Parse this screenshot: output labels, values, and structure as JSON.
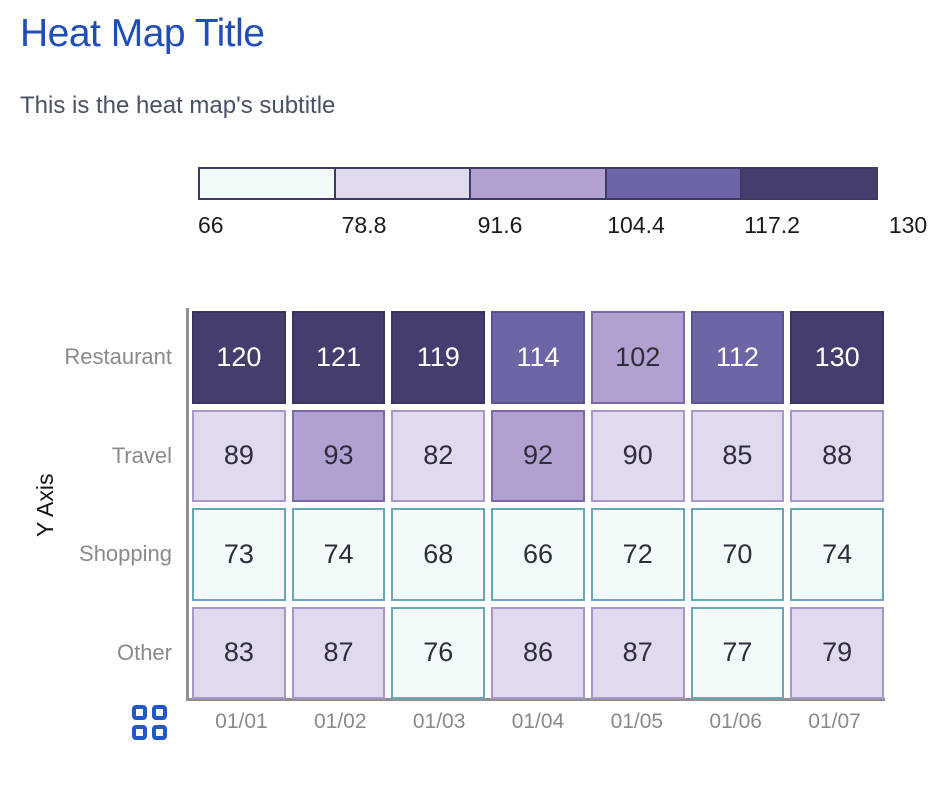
{
  "header": {
    "title": "Heat Map Title",
    "subtitle": "This is the heat map's subtitle"
  },
  "chart_data": {
    "type": "heatmap",
    "title": "Heat Map Title",
    "subtitle": "This is the heat map's subtitle",
    "y_axis_label": "Y Axis",
    "x_labels": [
      "01/01",
      "01/02",
      "01/03",
      "01/04",
      "01/05",
      "01/06",
      "01/07"
    ],
    "y_labels": [
      "Restaurant",
      "Travel",
      "Shopping",
      "Other"
    ],
    "values": [
      [
        120,
        121,
        119,
        114,
        102,
        112,
        130
      ],
      [
        89,
        93,
        82,
        92,
        90,
        85,
        88
      ],
      [
        73,
        74,
        68,
        66,
        72,
        70,
        74
      ],
      [
        83,
        87,
        76,
        86,
        87,
        77,
        79
      ]
    ],
    "scale": {
      "min": 66,
      "max": 130,
      "tick_labels": [
        "66",
        "78.8",
        "91.6",
        "104.4",
        "117.2",
        "130"
      ],
      "legend_border": "#3f3a64",
      "bins": [
        {
          "fill": "#f3fafa",
          "border": "#68a7b4",
          "text": "#2e2e3a"
        },
        {
          "fill": "#e1d9ed",
          "border": "#a997cb",
          "text": "#2e2e3a"
        },
        {
          "fill": "#b2a1d0",
          "border": "#7e69a7",
          "text": "#2e2e3a"
        },
        {
          "fill": "#6c65a6",
          "border": "#5a5496",
          "text": "#ffffff"
        },
        {
          "fill": "#443e6e",
          "border": "#3a3560",
          "text": "#ffffff"
        }
      ]
    },
    "legend_position": "top",
    "grid": false
  },
  "colors": {
    "title_blue": "#1f4eb8",
    "subtitle_gray": "#4a5165",
    "axis_line_gray": "#8f8f8f",
    "axis_text_gray": "#8a8a8a",
    "legend_tick_text": "#191920",
    "icon_blue": "#2158c8"
  },
  "footer": {
    "chart_type_icon": "heatmap-grid-icon"
  }
}
